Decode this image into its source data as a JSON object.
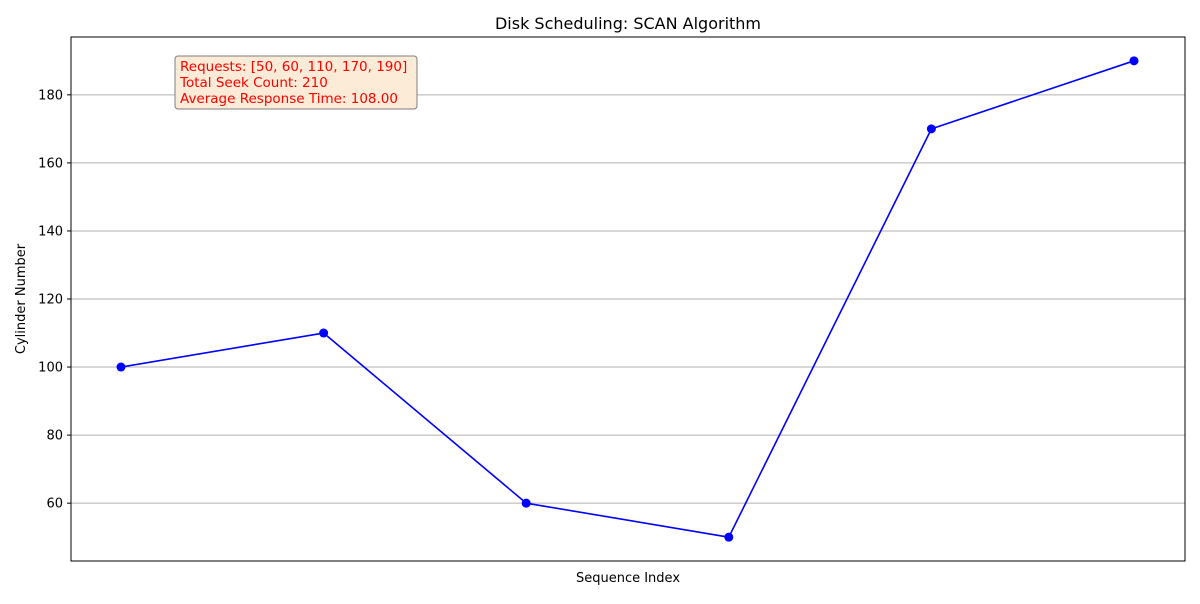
{
  "chart_data": {
    "type": "line",
    "title": "Disk Scheduling: SCAN Algorithm",
    "xlabel": "Sequence Index",
    "ylabel": "Cylinder Number",
    "x": [
      0,
      1,
      2,
      3,
      4,
      5
    ],
    "series": [
      {
        "values": [
          100,
          110,
          60,
          50,
          170,
          190
        ],
        "color": "#0000ff",
        "marker": "circle"
      }
    ],
    "ylim": [
      43,
      197
    ],
    "y_ticks": [
      60,
      80,
      100,
      120,
      140,
      160,
      180
    ],
    "x_ticks_visible": false,
    "grid": "horizontal",
    "annotation": {
      "lines": [
        "Requests: [50, 60, 110, 170, 190]",
        "Total Seek Count: 210",
        "Average Response Time: 108.00"
      ],
      "text_color": "#ff0000",
      "box_color": "#fcebd6",
      "placement": "top-left"
    }
  }
}
